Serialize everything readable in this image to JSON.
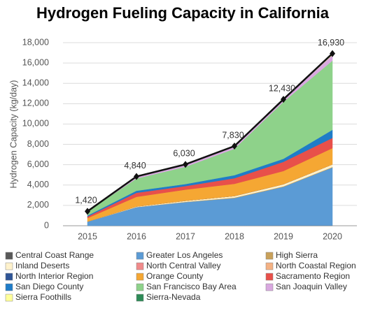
{
  "chart_data": {
    "type": "stacked-area",
    "title": "Hydrogen Fueling Capacity in California",
    "y_label": "Hydrogen Capacity (kg/day)",
    "categories": [
      "2015",
      "2016",
      "2017",
      "2018",
      "2019",
      "2020"
    ],
    "ylim": [
      0,
      18000
    ],
    "yticks": [
      {
        "value": 0,
        "label": "0"
      },
      {
        "value": 2000,
        "label": "2,000"
      },
      {
        "value": 4000,
        "label": "4,000"
      },
      {
        "value": 6000,
        "label": "6,000"
      },
      {
        "value": 8000,
        "label": "8,000"
      },
      {
        "value": 10000,
        "label": "10,000"
      },
      {
        "value": 12000,
        "label": "12,000"
      },
      {
        "value": 14000,
        "label": "14,000"
      },
      {
        "value": 16000,
        "label": "16,000"
      },
      {
        "value": 18000,
        "label": "18,000"
      }
    ],
    "grid": true,
    "series": [
      {
        "name": "Central Coast Range",
        "color": "#595959",
        "values": [
          0,
          20,
          20,
          20,
          30,
          30
        ]
      },
      {
        "name": "Greater Los Angeles",
        "color": "#5b9bd5",
        "values": [
          400,
          1800,
          2300,
          2700,
          3800,
          5700
        ]
      },
      {
        "name": "High Sierra",
        "color": "#c9a15a",
        "values": [
          0,
          20,
          30,
          50,
          50,
          50
        ]
      },
      {
        "name": "Inland Deserts",
        "color": "#fff2cc",
        "values": [
          0,
          50,
          100,
          150,
          200,
          250
        ]
      },
      {
        "name": "North Central Valley",
        "color": "#f08a8a",
        "values": [
          0,
          0,
          0,
          0,
          0,
          0
        ]
      },
      {
        "name": "North Coastal Region",
        "color": "#f4b183",
        "values": [
          0,
          0,
          0,
          0,
          0,
          0
        ]
      },
      {
        "name": "North Interior Region",
        "color": "#2f5597",
        "values": [
          0,
          0,
          0,
          0,
          0,
          0
        ]
      },
      {
        "name": "Orange County",
        "color": "#f5a733",
        "values": [
          350,
          950,
          1100,
          1200,
          1300,
          1600
        ]
      },
      {
        "name": "Sacramento Region",
        "color": "#e8504a",
        "values": [
          150,
          400,
          350,
          550,
          900,
          1000
        ]
      },
      {
        "name": "San Diego County",
        "color": "#1f7cc8",
        "values": [
          100,
          200,
          200,
          300,
          300,
          800
        ]
      },
      {
        "name": "San Francisco Bay Area",
        "color": "#8ed28a",
        "values": [
          400,
          1200,
          1700,
          2600,
          5600,
          6800
        ]
      },
      {
        "name": "San Joaquin Valley",
        "color": "#d9a8e0",
        "values": [
          20,
          150,
          180,
          200,
          200,
          550
        ]
      },
      {
        "name": "Sierra Foothills",
        "color": "#ffff99",
        "values": [
          0,
          50,
          50,
          60,
          50,
          100
        ]
      },
      {
        "name": "Sierra-Nevada",
        "color": "#2e8b57",
        "values": [
          0,
          0,
          0,
          0,
          0,
          50
        ]
      }
    ],
    "total": {
      "color": "#111111",
      "values": [
        1420,
        4840,
        6030,
        7830,
        12430,
        16930
      ],
      "value_labels": [
        "1,420",
        "4,840",
        "6,030",
        "7,830",
        "12,430",
        "16,930"
      ]
    }
  }
}
